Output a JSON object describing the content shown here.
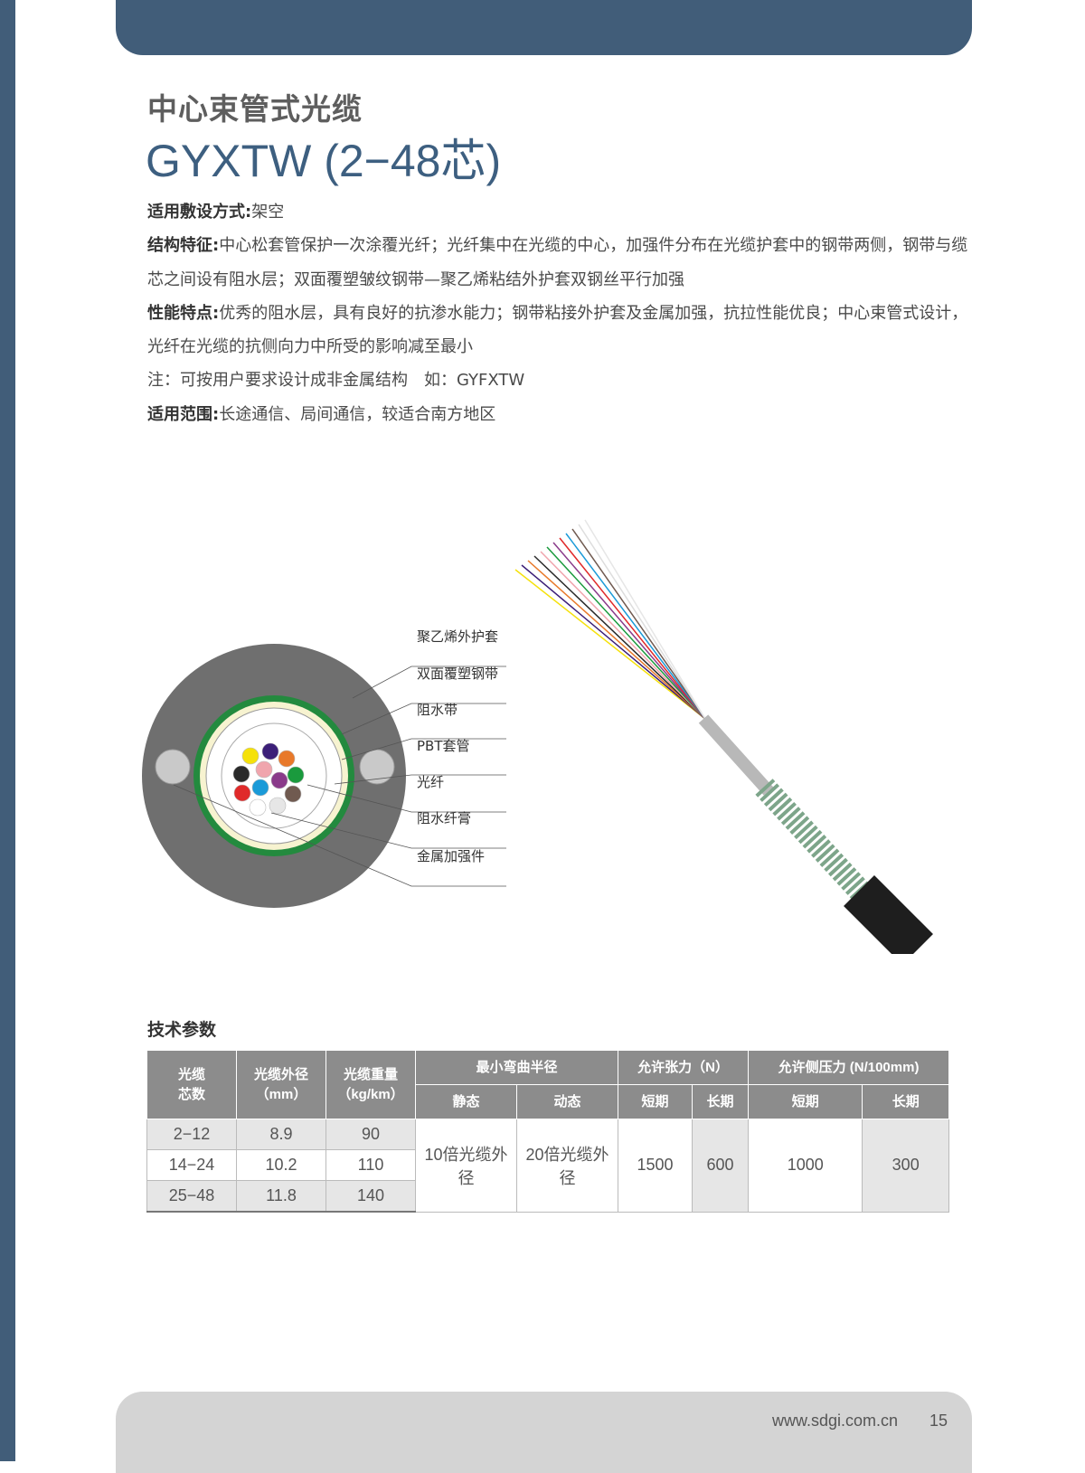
{
  "header": {
    "title_cn": "中心束管式光缆",
    "title_model": "GYXTW (2−48芯)"
  },
  "description": [
    {
      "label": "适用敷设方式:",
      "text": "架空"
    },
    {
      "label": "结构特征:",
      "text": "中心松套管保护一次涂覆光纤；光纤集中在光缆的中心，加强件分布在光缆护套中的钢带两侧，钢带与缆芯之间设有阻水层；双面覆塑皱纹钢带—聚乙烯粘结外护套双钢丝平行加强"
    },
    {
      "label": "性能特点:",
      "text": "优秀的阻水层，具有良好的抗渗水能力；钢带粘接外护套及金属加强，抗拉性能优良；中心束管式设计，光纤在光缆的抗侧向力中所受的影响减至最小"
    },
    {
      "label": "",
      "text": "注：可按用户要求设计成非金属结构　如：GYFXTW"
    },
    {
      "label": "适用范围:",
      "text": "长途通信、局间通信，较适合南方地区"
    }
  ],
  "diagram": {
    "labels": [
      "聚乙烯外护套",
      "双面覆塑钢带",
      "阻水带",
      "PBT套管",
      "光纤",
      "阻水纤膏",
      "金属加强件"
    ],
    "fiber_colors": [
      "#f5e10a",
      "#3c1f78",
      "#e8792a",
      "#2a2a2a",
      "#f0a5ad",
      "#1a9a3d",
      "#8a3a8a",
      "#e02a2a",
      "#1a9ad8",
      "#705a50",
      "#ffffff",
      "#e6e6e6"
    ]
  },
  "table": {
    "section_title": "技术参数",
    "headers": {
      "cores": "光缆\n芯数",
      "diameter": "光缆外径\n（mm）",
      "weight": "光缆重量\n（kg/km）",
      "bend": "最小弯曲半径",
      "tension": "允许张力（N）",
      "crush": "允许侧压力 (N/100mm)",
      "static": "静态",
      "dynamic": "动态",
      "short1": "短期",
      "long1": "长期",
      "short2": "短期",
      "long2": "长期"
    },
    "rows": [
      {
        "cores": "2−12",
        "diameter": "8.9",
        "weight": "90"
      },
      {
        "cores": "14−24",
        "diameter": "10.2",
        "weight": "110"
      },
      {
        "cores": "25−48",
        "diameter": "11.8",
        "weight": "140"
      }
    ],
    "bend_static": "10倍光缆外径",
    "bend_dynamic": "20倍光缆外径",
    "tension_short": "1500",
    "tension_long": "600",
    "crush_short": "1000",
    "crush_long": "300"
  },
  "footer": {
    "url": "www.sdgi.com.cn",
    "page": "15"
  }
}
